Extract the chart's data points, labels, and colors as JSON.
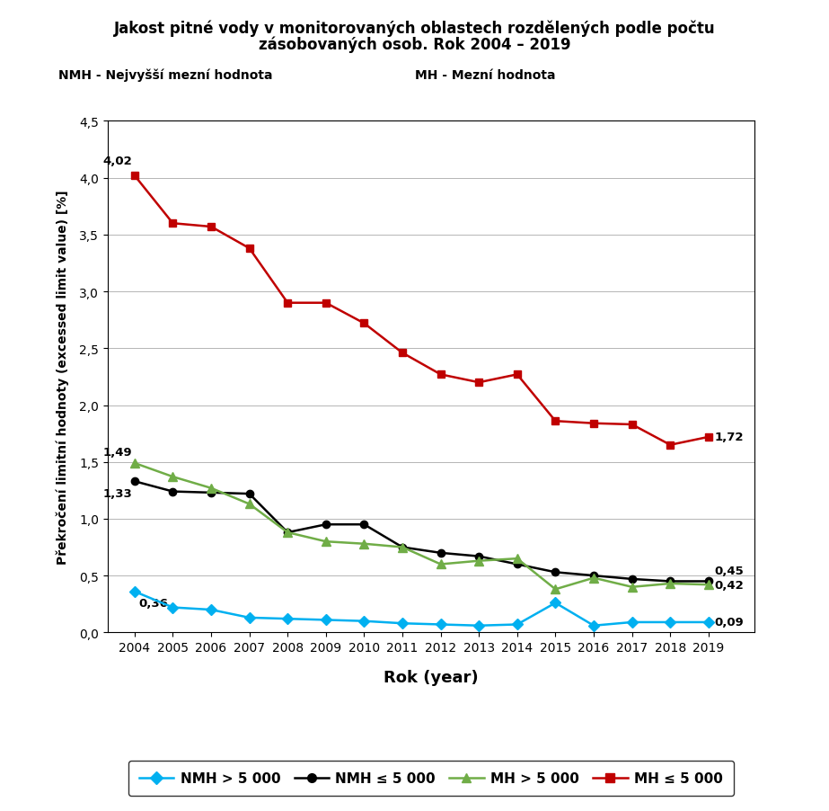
{
  "title_line1": "Jakost pitné vody v monitorovaných oblastech rozdělených podle počtu",
  "title_line2": "zásobovaných osob. Rok 2004 – 2019",
  "subtitle_left": "NMH - Nejvyšší mezní hodnota",
  "subtitle_right": "MH - Mezní hodnota",
  "xlabel": "Rok (year)",
  "ylabel": "Překročení limitní hodnoty (excessed limit value) [%]",
  "years": [
    2004,
    2005,
    2006,
    2007,
    2008,
    2009,
    2010,
    2011,
    2012,
    2013,
    2014,
    2015,
    2016,
    2017,
    2018,
    2019
  ],
  "nmh_gt5000": [
    0.36,
    0.22,
    0.2,
    0.13,
    0.12,
    0.11,
    0.1,
    0.08,
    0.07,
    0.06,
    0.07,
    0.26,
    0.06,
    0.09,
    0.09,
    0.09
  ],
  "nmh_le5000": [
    1.33,
    1.24,
    1.23,
    1.22,
    0.88,
    0.95,
    0.95,
    0.75,
    0.7,
    0.67,
    0.6,
    0.53,
    0.5,
    0.47,
    0.45,
    0.45
  ],
  "mh_gt5000": [
    1.49,
    1.37,
    1.27,
    1.13,
    0.88,
    0.8,
    0.78,
    0.75,
    0.6,
    0.63,
    0.65,
    0.38,
    0.48,
    0.4,
    0.43,
    0.42
  ],
  "mh_le5000": [
    4.02,
    3.6,
    3.57,
    3.38,
    2.9,
    2.9,
    2.72,
    2.46,
    2.27,
    2.2,
    2.27,
    1.86,
    1.84,
    1.83,
    1.65,
    1.72
  ],
  "color_nmh_gt5000": "#00B0F0",
  "color_nmh_le5000": "#000000",
  "color_mh_gt5000": "#70AD47",
  "color_mh_le5000": "#C00000",
  "ylim": [
    0,
    4.5
  ],
  "yticks": [
    0,
    0.5,
    1.0,
    1.5,
    2.0,
    2.5,
    3.0,
    3.5,
    4.0,
    4.5
  ],
  "legend_labels": [
    "NMH > 5 000",
    "NMH ≤ 5 000",
    "MH > 5 000",
    "MH ≤ 5 000"
  ],
  "annot_start": {
    "mh_le5000": "4,02",
    "mh_gt5000": "1,49",
    "nmh_le5000": "1,33",
    "nmh_gt5000": "0,36"
  },
  "annot_end": {
    "mh_le5000": "1,72",
    "mh_gt5000": "0,42",
    "nmh_le5000": "0,45",
    "nmh_gt5000": "0,09"
  }
}
